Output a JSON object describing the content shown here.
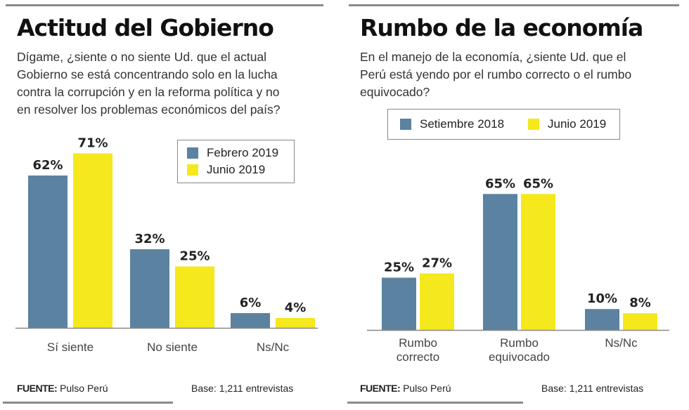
{
  "colors": {
    "series_a": "#5b82a0",
    "series_b": "#f5e81c",
    "text": "#222222",
    "rule": "#8a8a8a"
  },
  "chart_data": [
    {
      "type": "bar",
      "title": "Actitud del Gobierno",
      "subtitle": "Dígame, ¿siente o no siente Ud. que el actual Gobierno se está concentrando solo en la lucha contra la corrupción y en la reforma política y no en resolver los problemas económicos del país?",
      "categories": [
        "Sí siente",
        "No siente",
        "Ns/Nc"
      ],
      "series": [
        {
          "name": "Febrero 2019",
          "values": [
            62,
            32,
            6
          ]
        },
        {
          "name": "Junio 2019",
          "values": [
            71,
            25,
            4
          ]
        }
      ],
      "value_labels": [
        [
          "62%",
          "32%",
          "6%"
        ],
        [
          "71%",
          "25%",
          "4%"
        ]
      ],
      "legend": "top-right",
      "ylim": [
        0,
        75
      ],
      "grid": false,
      "xlabel": "",
      "ylabel": ""
    },
    {
      "type": "bar",
      "title": "Rumbo de la economía",
      "subtitle": "En el manejo de la economía, ¿siente Ud. que el Perú está yendo por el rumbo correcto o el rumbo equivocado?",
      "categories": [
        "Rumbo correcto",
        "Rumbo equivocado",
        "Ns/Nc"
      ],
      "series": [
        {
          "name": "Setiembre 2018",
          "values": [
            25,
            65,
            10
          ]
        },
        {
          "name": "Junio 2019",
          "values": [
            27,
            65,
            8
          ]
        }
      ],
      "value_labels": [
        [
          "25%",
          "65%",
          "10%"
        ],
        [
          "27%",
          "65%",
          "8%"
        ]
      ],
      "legend": "top",
      "ylim": [
        0,
        75
      ],
      "grid": false,
      "xlabel": "",
      "ylabel": ""
    }
  ],
  "panels": [
    {
      "title": "Actitud del Gobierno",
      "question_lines": [
        "Dígame, ¿siente o no siente Ud. que el actual",
        "Gobierno se está concentrando solo en la lucha",
        "contra la corrupción y en la reforma política y no",
        "en resolver los problemas económicos del país?"
      ],
      "legend": [
        "Febrero 2019",
        "Junio 2019"
      ],
      "categories": [
        [
          "Sí siente"
        ],
        [
          "No siente"
        ],
        [
          "Ns/Nc"
        ]
      ],
      "footer": {
        "source_label": "FUENTE:",
        "source": "Pulso Perú",
        "base": "Base: 1,211 entrevistas"
      }
    },
    {
      "title": "Rumbo de la economía",
      "question_lines": [
        "En el manejo de la economía, ¿siente Ud. que el",
        "Perú está yendo por el rumbo correcto o el rumbo",
        "equivocado?"
      ],
      "legend": [
        "Setiembre 2018",
        "Junio 2019"
      ],
      "categories": [
        [
          "Rumbo",
          "correcto"
        ],
        [
          "Rumbo",
          "equivocado"
        ],
        [
          "Ns/Nc"
        ]
      ],
      "footer": {
        "source_label": "FUENTE:",
        "source": "Pulso Perú",
        "base": "Base: 1,211 entrevistas"
      }
    }
  ]
}
